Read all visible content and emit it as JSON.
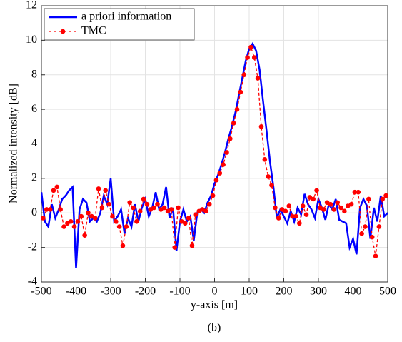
{
  "chart_data": {
    "type": "line",
    "xlabel": "y-axis [m]",
    "ylabel": "Normalized intensity [dB]",
    "caption": "(b)",
    "xlim": [
      -500,
      500
    ],
    "xticks": [
      -500,
      -400,
      -300,
      -200,
      -100,
      0,
      100,
      200,
      300,
      400,
      500
    ],
    "ylim": [
      -4,
      12
    ],
    "yticks": [
      -4,
      -2,
      0,
      2,
      4,
      6,
      8,
      10,
      12
    ],
    "grid": true,
    "legend": "upper left",
    "series": [
      {
        "name": "a priori information",
        "color": "#0000ff",
        "style": "solid",
        "x": [
          -500,
          -490,
          -480,
          -470,
          -460,
          -450,
          -440,
          -430,
          -420,
          -410,
          -400,
          -390,
          -380,
          -370,
          -360,
          -350,
          -340,
          -330,
          -320,
          -310,
          -300,
          -290,
          -280,
          -270,
          -260,
          -250,
          -240,
          -230,
          -220,
          -210,
          -200,
          -190,
          -180,
          -170,
          -160,
          -150,
          -140,
          -130,
          -120,
          -110,
          -100,
          -90,
          -80,
          -70,
          -60,
          -50,
          -40,
          -30,
          -20,
          -10,
          0,
          10,
          20,
          30,
          40,
          50,
          60,
          70,
          80,
          90,
          100,
          110,
          120,
          130,
          140,
          150,
          160,
          170,
          180,
          190,
          200,
          210,
          220,
          230,
          240,
          250,
          260,
          270,
          280,
          290,
          300,
          310,
          320,
          330,
          340,
          350,
          360,
          370,
          380,
          390,
          400,
          410,
          420,
          430,
          440,
          450,
          460,
          470,
          480,
          490,
          500
        ],
        "values": [
          1.2,
          -0.5,
          -0.8,
          0.5,
          -0.3,
          0.2,
          0.8,
          1.0,
          1.3,
          1.5,
          -3.2,
          0.2,
          0.8,
          0.6,
          -0.5,
          -0.3,
          -0.5,
          0,
          1.0,
          0.5,
          2.0,
          -0.5,
          -0.2,
          0.2,
          -1.2,
          -0.3,
          -0.8,
          0.5,
          -0.5,
          0.3,
          0.8,
          -0.2,
          0.3,
          1.2,
          0.2,
          0.5,
          1.5,
          -0.3,
          0.3,
          -2.2,
          -0.5,
          0.2,
          -0.5,
          -0.2,
          -1.6,
          0,
          0.2,
          0,
          0.6,
          1.0,
          1.7,
          2.2,
          2.8,
          3.5,
          4.3,
          5.0,
          5.8,
          6.8,
          7.8,
          8.8,
          9.5,
          9.8,
          9.4,
          8.3,
          6.5,
          4.8,
          3.0,
          1.5,
          -0.3,
          0.2,
          -0.2,
          -0.6,
          0.1,
          -0.5,
          0.3,
          -0.1,
          1.1,
          0.5,
          0.2,
          -0.3,
          0.8,
          0.3,
          -0.4,
          0.5,
          0.2,
          0.8,
          -0.4,
          -0.5,
          -0.6,
          -2.0,
          -1.5,
          -2.4,
          0.3,
          0.8,
          0.4,
          -1.5,
          0.3,
          -0.5,
          1.0,
          -0.2,
          0.0
        ]
      },
      {
        "name": "TMC",
        "color": "#ff0000",
        "style": "dashed",
        "x": [
          -495,
          -485,
          -475,
          -465,
          -455,
          -445,
          -435,
          -425,
          -415,
          -405,
          -395,
          -385,
          -375,
          -365,
          -355,
          -345,
          -335,
          -325,
          -315,
          -305,
          -295,
          -285,
          -275,
          -265,
          -255,
          -245,
          -235,
          -225,
          -215,
          -205,
          -195,
          -185,
          -175,
          -165,
          -155,
          -145,
          -135,
          -125,
          -115,
          -105,
          -95,
          -85,
          -75,
          -65,
          -55,
          -45,
          -35,
          -25,
          -15,
          -5,
          5,
          15,
          25,
          35,
          45,
          55,
          65,
          75,
          85,
          95,
          105,
          115,
          125,
          135,
          145,
          155,
          165,
          175,
          185,
          195,
          205,
          215,
          225,
          235,
          245,
          255,
          265,
          275,
          285,
          295,
          305,
          315,
          325,
          335,
          345,
          355,
          365,
          375,
          385,
          395,
          405,
          415,
          425,
          435,
          445,
          455,
          465,
          475,
          485,
          495
        ],
        "values": [
          -0.3,
          0.2,
          0.2,
          1.3,
          1.5,
          0.2,
          -0.8,
          -0.6,
          -0.5,
          -0.8,
          -0.5,
          -0.2,
          -1.3,
          0,
          -0.2,
          -0.3,
          1.4,
          0.3,
          1.3,
          0.5,
          -0.2,
          -0.5,
          -0.8,
          -1.9,
          -0.8,
          0.6,
          0.3,
          -0.5,
          0.1,
          0.8,
          0.5,
          0.2,
          0.3,
          0.5,
          0.2,
          0.3,
          0.1,
          0.2,
          -2.0,
          0.3,
          -0.5,
          -0.6,
          -0.3,
          -1.9,
          -0.1,
          0.1,
          0.2,
          0.1,
          0.5,
          1.0,
          1.9,
          2.3,
          2.8,
          3.5,
          4.3,
          5.2,
          6.0,
          7.0,
          8.0,
          9.0,
          9.6,
          9.0,
          7.8,
          5.0,
          3.1,
          2.1,
          1.6,
          0.3,
          -0.3,
          0.2,
          0.1,
          0.4,
          -0.2,
          -0.2,
          -0.6,
          0.4,
          -0.1,
          0.9,
          0.8,
          1.3,
          0.3,
          0.2,
          0.6,
          0.5,
          0.2,
          0.6,
          0.3,
          0.1,
          0.4,
          0.5,
          1.2,
          1.2,
          -1.2,
          -0.8,
          0.8,
          -1.4,
          -2.5,
          -0.8,
          0.8,
          1.0
        ]
      }
    ]
  }
}
